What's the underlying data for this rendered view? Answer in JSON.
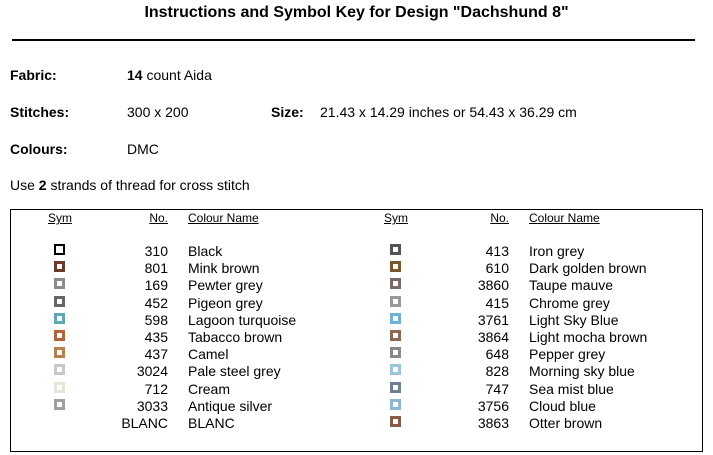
{
  "header": {
    "title": "Instructions and Symbol Key for Design \"Dachshund 8\""
  },
  "details": {
    "fabric_label": "Fabric:",
    "fabric_count": "14",
    "fabric_value": "count Aida",
    "stitches_label": "Stitches:",
    "stitches_value": "300 x 200",
    "size_label": "Size:",
    "size_value": "21.43 x 14.29 inches or 54.43 x 36.29 cm",
    "colours_label": "Colours:",
    "colours_value": "DMC",
    "strands_before": "Use",
    "strands_count": "2",
    "strands_after": "strands of thread for cross stitch"
  },
  "table": {
    "headers": [
      "Sym",
      "No.",
      "Colour Name"
    ],
    "left": [
      [
        "310",
        "Black"
      ],
      [
        "801",
        "Mink brown"
      ],
      [
        "169",
        "Pewter grey"
      ],
      [
        "452",
        "Pigeon grey"
      ],
      [
        "598",
        "Lagoon turquoise"
      ],
      [
        "435",
        "Tabacco brown"
      ],
      [
        "437",
        "Camel"
      ],
      [
        "3024",
        "Pale steel grey"
      ],
      [
        "712",
        "Cream"
      ],
      [
        "3033",
        "Antique silver"
      ],
      [
        "BLANC",
        "BLANC"
      ]
    ],
    "right": [
      [
        "413",
        "Iron grey"
      ],
      [
        "610",
        "Dark golden brown"
      ],
      [
        "3860",
        "Taupe mauve"
      ],
      [
        "415",
        "Chrome grey"
      ],
      [
        "3761",
        "Light Sky Blue"
      ],
      [
        "3864",
        "Light mocha brown"
      ],
      [
        "648",
        "Pepper grey"
      ],
      [
        "828",
        "Morning sky blue"
      ],
      [
        "747",
        "Sea mist blue"
      ],
      [
        "3756",
        "Cloud blue"
      ],
      [
        "3863",
        "Otter brown"
      ]
    ]
  }
}
